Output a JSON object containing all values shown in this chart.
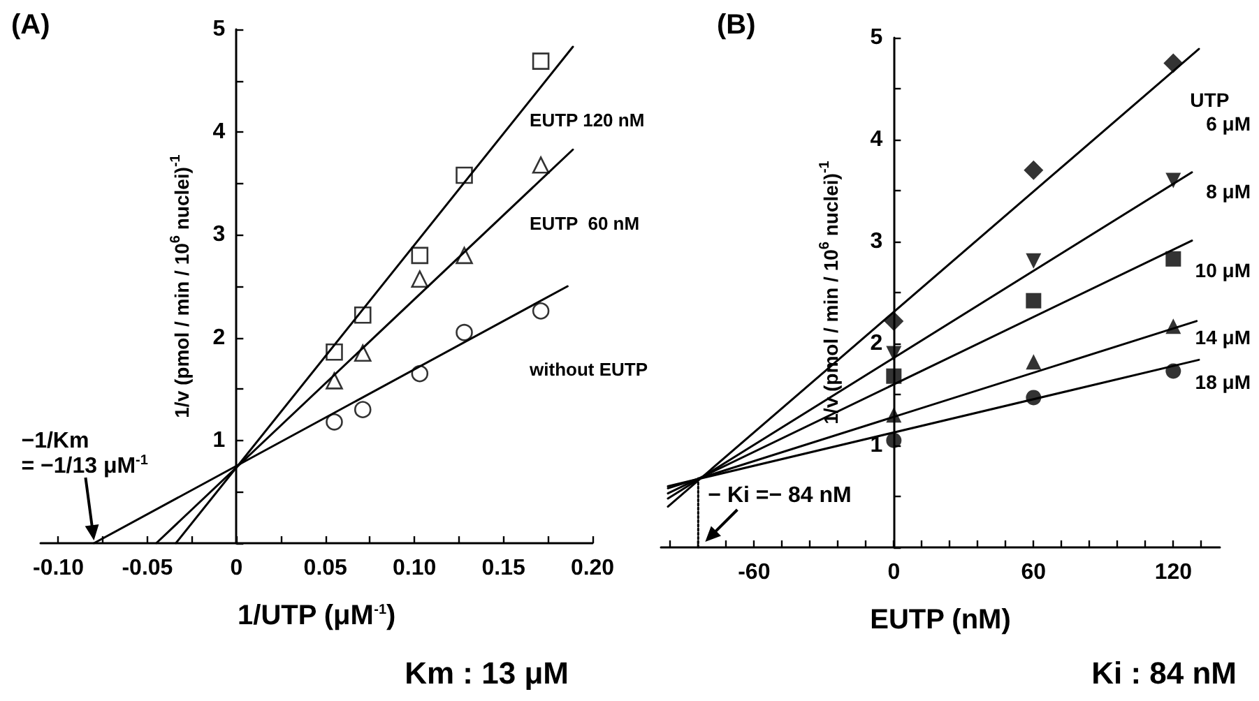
{
  "chart_data": [
    {
      "type": "scatter",
      "title": "(A)",
      "xlabel": "1/UTP (μM$^{-1}$)",
      "ylabel": "1/v (pmol / min / 10$^{6}$ nuclei)$^{-1}$",
      "annotations": [
        {
          "text": "−1/Km\n= −1/13 μM$^{-1}$",
          "x": -0.08,
          "y": 0
        },
        "Km : 13 μM"
      ],
      "xlim": [
        -0.11,
        0.2
      ],
      "ylim": [
        0,
        5
      ],
      "xticks": [
        {
          "value": -0.1,
          "label": "-0.10"
        },
        {
          "value": -0.075,
          "label": null
        },
        {
          "value": -0.05,
          "label": "-0.05"
        },
        {
          "value": -0.025,
          "label": null
        },
        0,
        {
          "value": 0.025,
          "label": null
        },
        {
          "value": 0.05,
          "label": "0.05"
        },
        {
          "value": 0.075,
          "label": null
        },
        {
          "value": 0.1,
          "label": "0.10"
        },
        {
          "value": 0.125,
          "label": null
        },
        {
          "value": 0.15,
          "label": "0.15"
        },
        {
          "value": 0.175,
          "label": null
        },
        {
          "value": 0.2,
          "label": "0.20"
        }
      ],
      "yticks": [
        {
          "value": 0,
          "label": null
        },
        {
          "value": 0.5,
          "label": null
        },
        1,
        {
          "value": 1.5,
          "label": null
        },
        2,
        {
          "value": 2.5,
          "label": null
        },
        3,
        {
          "value": 3.5,
          "label": null
        },
        4,
        {
          "value": 4.5,
          "label": null
        },
        5
      ],
      "series": [
        {
          "name": "EUTP 120 nM",
          "type": "scatter",
          "marker": "square",
          "color": "#000000",
          "x": [
            0.055,
            0.071,
            0.103,
            0.128,
            0.171
          ],
          "values": [
            1.86,
            2.22,
            2.8,
            3.58,
            4.69
          ]
        },
        {
          "type": "line",
          "marker": "none",
          "color": "#000000",
          "x": [
            -0.034,
            0.189
          ],
          "values": [
            0,
            4.83
          ]
        },
        {
          "name": "EUTP  60 nM",
          "type": "scatter",
          "marker": "triangle",
          "color": "#000000",
          "x": [
            0.055,
            0.071,
            0.103,
            0.128,
            0.171
          ],
          "values": [
            1.58,
            1.85,
            2.57,
            2.8,
            3.68
          ]
        },
        {
          "type": "line",
          "marker": "none",
          "color": "#000000",
          "x": [
            -0.045,
            0.189
          ],
          "values": [
            0,
            3.83
          ]
        },
        {
          "name": "without EUTP",
          "type": "scatter",
          "marker": "circle",
          "color": "#000000",
          "x": [
            0.055,
            0.071,
            0.103,
            0.128,
            0.171
          ],
          "values": [
            1.18,
            1.3,
            1.65,
            2.05,
            2.26
          ]
        },
        {
          "type": "line",
          "marker": "none",
          "color": "#000000",
          "x": [
            -0.08,
            0.186
          ],
          "values": [
            0,
            2.5
          ]
        }
      ]
    },
    {
      "type": "scatter",
      "title": "(B)",
      "xlabel": "EUTP (nM)",
      "ylabel": "1/v (pmol / min / 10$^{6}$ nuclei)$^{-1}$",
      "legend_title": "UTP",
      "annotations": [
        {
          "text": "− Ki =− 84 nM",
          "x": -84,
          "y": 0
        },
        "Ki : 84 nM"
      ],
      "xlim": [
        -100,
        140
      ],
      "ylim": [
        0,
        5
      ],
      "xticks": [
        {
          "value": -96,
          "label": null
        },
        {
          "value": -84,
          "label": null
        },
        {
          "value": -72,
          "label": null
        },
        -60,
        {
          "value": -48,
          "label": null
        },
        {
          "value": -36,
          "label": null
        },
        {
          "value": -24,
          "label": null
        },
        {
          "value": -12,
          "label": null
        },
        0,
        {
          "value": 12,
          "label": null
        },
        {
          "value": 24,
          "label": null
        },
        {
          "value": 36,
          "label": null
        },
        {
          "value": 48,
          "label": null
        },
        60,
        {
          "value": 72,
          "label": null
        },
        {
          "value": 84,
          "label": null
        },
        {
          "value": 96,
          "label": null
        },
        {
          "value": 108,
          "label": null
        },
        120,
        {
          "value": 132,
          "label": null
        }
      ],
      "yticks": [
        {
          "value": 0,
          "label": null
        },
        {
          "value": 0.5,
          "label": null
        },
        1,
        {
          "value": 1.5,
          "label": null
        },
        2,
        {
          "value": 2.5,
          "label": null
        },
        3,
        {
          "value": 3.5,
          "label": null
        },
        4,
        {
          "value": 4.5,
          "label": null
        },
        5
      ],
      "series": [
        {
          "name": "6 μM",
          "type": "scatter",
          "marker": "diamond",
          "color": "#000000",
          "x": [
            0,
            60,
            120
          ],
          "values": [
            2.22,
            3.7,
            4.75
          ]
        },
        {
          "type": "line",
          "marker": "none",
          "color": "#000000",
          "x": [
            -97,
            131
          ],
          "values": [
            0.4,
            4.89
          ]
        },
        {
          "name": "8 μM",
          "type": "scatter",
          "marker": "triangle-down",
          "color": "#000000",
          "x": [
            0,
            60,
            120
          ],
          "values": [
            1.9,
            2.81,
            3.6
          ]
        },
        {
          "type": "line",
          "marker": "none",
          "color": "#000000",
          "x": [
            -97,
            128
          ],
          "values": [
            0.48,
            3.68
          ]
        },
        {
          "name": "10 μM",
          "type": "scatter",
          "marker": "square",
          "color": "#000000",
          "x": [
            0,
            60,
            120
          ],
          "values": [
            1.68,
            2.42,
            2.83
          ]
        },
        {
          "type": "line",
          "marker": "none",
          "color": "#000000",
          "x": [
            -97,
            128
          ],
          "values": [
            0.53,
            3.01
          ]
        },
        {
          "name": "14 μM",
          "type": "scatter",
          "marker": "triangle",
          "color": "#000000",
          "x": [
            0,
            60,
            120
          ],
          "values": [
            1.3,
            1.82,
            2.17
          ]
        },
        {
          "type": "line",
          "marker": "none",
          "color": "#000000",
          "x": [
            -97,
            130
          ],
          "values": [
            0.58,
            2.22
          ]
        },
        {
          "name": "18 μM",
          "type": "scatter",
          "marker": "circle",
          "color": "#000000",
          "x": [
            0,
            60,
            120
          ],
          "values": [
            1.05,
            1.47,
            1.73
          ]
        },
        {
          "type": "line",
          "marker": "none",
          "color": "#000000",
          "x": [
            -97,
            131
          ],
          "values": [
            0.6,
            1.84
          ]
        },
        {
          "type": "line",
          "marker": "none",
          "line_style": "dotted",
          "color": "#000000",
          "x": [
            -84,
            -84
          ],
          "values": [
            0,
            0.68
          ]
        }
      ]
    }
  ]
}
